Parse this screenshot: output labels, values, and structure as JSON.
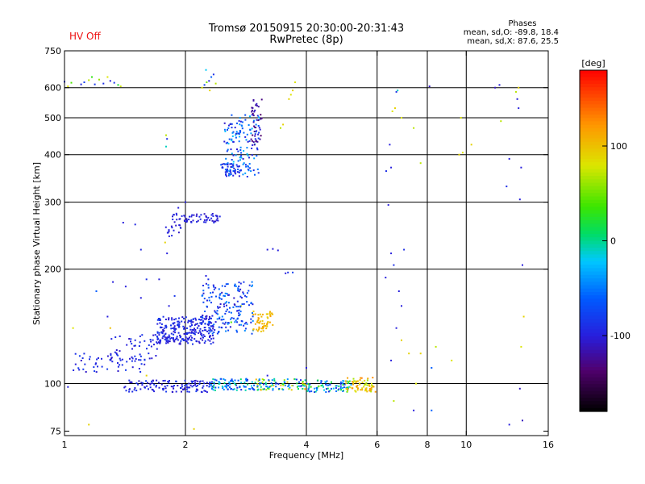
{
  "chart_data": {
    "type": "scatter",
    "title": "Tromsø 20150915 20:30:00-20:31:43",
    "subtitle": "RwPretec (8p)",
    "status": "HV Off",
    "stats": {
      "heading": "Phases",
      "line1": "mean, sd,O: -89.8, 18.4",
      "line2": "mean, sd,X:  87.6, 25.5"
    },
    "xlabel": "Frequency [MHz]",
    "ylabel": "Stationary phase Virtual Height [km]",
    "xscale": "log",
    "yscale": "log",
    "xlim": [
      1,
      16
    ],
    "ylim": [
      73,
      750
    ],
    "x_ticks": [
      "1",
      "2",
      "4",
      "6",
      "8",
      "10",
      "16"
    ],
    "x_tick_values": [
      1,
      2,
      4,
      6,
      8,
      10,
      16
    ],
    "y_ticks": [
      "75",
      "100",
      "200",
      "300",
      "400",
      "500",
      "600",
      "750"
    ],
    "y_tick_values": [
      75,
      100,
      200,
      300,
      400,
      500,
      600,
      750
    ],
    "grid_x": [
      2,
      4,
      6,
      8,
      10
    ],
    "grid_y": [
      100,
      200,
      300,
      400,
      500,
      600
    ],
    "colorbar": {
      "label": "[deg]",
      "range": [
        -180,
        180
      ],
      "ticks": [
        "100",
        "0",
        "-100"
      ],
      "tick_values": [
        100,
        0,
        -100
      ]
    },
    "series": [
      {
        "values": [
          [
            1.0,
            622,
            -90
          ],
          [
            1.02,
            605,
            80
          ],
          [
            1.04,
            618,
            40
          ],
          [
            1.1,
            612,
            -95
          ],
          [
            1.12,
            620,
            -80
          ],
          [
            1.15,
            628,
            70
          ],
          [
            1.17,
            640,
            30
          ],
          [
            1.19,
            612,
            -85
          ],
          [
            1.22,
            630,
            60
          ],
          [
            1.25,
            615,
            -90
          ],
          [
            1.28,
            640,
            80
          ],
          [
            1.3,
            625,
            -100
          ],
          [
            1.33,
            618,
            -85
          ],
          [
            1.36,
            610,
            20
          ],
          [
            1.38,
            605,
            75
          ],
          [
            2.2,
            600,
            80
          ],
          [
            2.23,
            610,
            -75
          ],
          [
            2.26,
            620,
            50
          ],
          [
            2.29,
            625,
            -100
          ],
          [
            2.32,
            640,
            -60
          ],
          [
            2.35,
            650,
            -90
          ],
          [
            2.38,
            615,
            70
          ],
          [
            2.3,
            590,
            90
          ],
          [
            2.25,
            668,
            -20
          ],
          [
            1.79,
            450,
            70
          ],
          [
            1.8,
            440,
            -90
          ],
          [
            1.79,
            420,
            -10
          ],
          [
            3.45,
            470,
            70
          ],
          [
            3.5,
            480,
            90
          ],
          [
            3.62,
            560,
            90
          ],
          [
            3.66,
            575,
            80
          ],
          [
            3.7,
            590,
            90
          ],
          [
            3.75,
            620,
            80
          ],
          [
            2.28,
            188,
            -90
          ],
          [
            1.42,
            180,
            -100
          ],
          [
            1.55,
            168,
            -100
          ],
          [
            1.6,
            188,
            -90
          ],
          [
            1.2,
            175,
            -60
          ],
          [
            1.32,
            185,
            -100
          ],
          [
            1.72,
            188,
            -100
          ],
          [
            1.88,
            170,
            -85
          ],
          [
            1.82,
            160,
            -100
          ],
          [
            2.2,
            150,
            -60
          ],
          [
            2.6,
            145,
            40
          ],
          [
            2.75,
            160,
            80
          ],
          [
            1.4,
            265,
            -100
          ],
          [
            1.5,
            262,
            -95
          ],
          [
            1.78,
            235,
            90
          ],
          [
            1.85,
            245,
            -95
          ],
          [
            1.92,
            290,
            -100
          ],
          [
            2.4,
            275,
            -90
          ],
          [
            1.55,
            225,
            -95
          ],
          [
            1.8,
            220,
            -100
          ],
          [
            3.2,
            225,
            -100
          ],
          [
            3.3,
            226,
            -100
          ],
          [
            3.4,
            224,
            -100
          ],
          [
            2.25,
            192,
            -100
          ],
          [
            3.55,
            195,
            -100
          ],
          [
            3.6,
            196,
            -90
          ],
          [
            3.7,
            196,
            -80
          ],
          [
            1.28,
            150,
            -100
          ],
          [
            1.3,
            140,
            100
          ],
          [
            1.5,
            130,
            -95
          ],
          [
            6.32,
            362,
            -90
          ],
          [
            6.45,
            425,
            -100
          ],
          [
            6.5,
            370,
            -100
          ],
          [
            6.55,
            520,
            80
          ],
          [
            6.65,
            530,
            90
          ],
          [
            6.7,
            585,
            -90
          ],
          [
            6.75,
            590,
            -10
          ],
          [
            6.9,
            500,
            80
          ],
          [
            7.4,
            470,
            70
          ],
          [
            7.7,
            380,
            70
          ],
          [
            8.1,
            605,
            -110
          ],
          [
            9.6,
            400,
            90
          ],
          [
            9.7,
            500,
            80
          ],
          [
            9.8,
            405,
            80
          ],
          [
            10.3,
            425,
            90
          ],
          [
            11.8,
            600,
            -110
          ],
          [
            12.1,
            610,
            -100
          ],
          [
            12.2,
            490,
            70
          ],
          [
            12.6,
            330,
            -90
          ],
          [
            12.8,
            390,
            -100
          ],
          [
            13.3,
            585,
            70
          ],
          [
            13.4,
            560,
            -100
          ],
          [
            13.5,
            530,
            -100
          ],
          [
            13.7,
            370,
            -100
          ],
          [
            13.6,
            305,
            -100
          ],
          [
            13.8,
            205,
            -100
          ],
          [
            13.9,
            150,
            90
          ],
          [
            13.7,
            125,
            80
          ],
          [
            13.5,
            600,
            90
          ],
          [
            6.4,
            295,
            -100
          ],
          [
            6.5,
            220,
            -100
          ],
          [
            6.6,
            205,
            -90
          ],
          [
            6.8,
            175,
            -100
          ],
          [
            6.9,
            160,
            -100
          ],
          [
            7.0,
            225,
            -90
          ],
          [
            6.3,
            190,
            -100
          ],
          [
            6.7,
            140,
            -100
          ],
          [
            6.9,
            130,
            90
          ],
          [
            7.2,
            120,
            90
          ],
          [
            7.5,
            100,
            80
          ],
          [
            7.7,
            120,
            90
          ],
          [
            8.2,
            110,
            -60
          ],
          [
            8.4,
            125,
            70
          ],
          [
            9.2,
            115,
            80
          ],
          [
            6.5,
            115,
            -100
          ],
          [
            6.6,
            90,
            70
          ],
          [
            7.4,
            85,
            -100
          ],
          [
            8.2,
            85,
            -60
          ],
          [
            13.6,
            97,
            -110
          ],
          [
            13.8,
            80,
            -110
          ],
          [
            12.8,
            78,
            -100
          ],
          [
            1.02,
            98,
            -100
          ],
          [
            1.05,
            140,
            80
          ],
          [
            1.15,
            78,
            90
          ],
          [
            2.1,
            76,
            90
          ],
          [
            2.0,
            300,
            -100
          ],
          [
            1.6,
            105,
            90
          ],
          [
            2.2,
            95,
            -100
          ],
          [
            3.2,
            105,
            -100
          ],
          [
            4.0,
            110,
            -100
          ]
        ]
      },
      {
        "clusters": [
          {
            "x": [
              1.7,
              2.35
            ],
            "y": [
              127,
              150
            ],
            "n": 260,
            "phase": [
              -110,
              -80
            ]
          },
          {
            "x": [
              2.2,
              2.95
            ],
            "y": [
              135,
              185
            ],
            "n": 180,
            "phase": [
              -110,
              -40
            ]
          },
          {
            "x": [
              1.05,
              1.6
            ],
            "y": [
              107,
              120
            ],
            "n": 55,
            "phase": [
              -110,
              -80
            ]
          },
          {
            "x": [
              1.3,
              1.7
            ],
            "y": [
              115,
              135
            ],
            "n": 45,
            "phase": [
              -110,
              -80
            ]
          },
          {
            "x": [
              2.95,
              3.3
            ],
            "y": [
              137,
              155
            ],
            "n": 55,
            "phase": [
              90,
              120
            ]
          },
          {
            "x": [
              2.5,
              3.05
            ],
            "y": [
              350,
              510
            ],
            "n": 140,
            "phase": [
              -110,
              -20
            ]
          },
          {
            "x": [
              2.45,
              2.75
            ],
            "y": [
              350,
              380
            ],
            "n": 40,
            "phase": [
              -110,
              -60
            ]
          },
          {
            "x": [
              2.9,
              3.1
            ],
            "y": [
              420,
              560
            ],
            "n": 40,
            "phase": [
              -140,
              -100
            ]
          },
          {
            "x": [
              1.85,
              2.45
            ],
            "y": [
              265,
              280
            ],
            "n": 60,
            "phase": [
              -110,
              -90
            ]
          },
          {
            "x": [
              1.78,
              1.95
            ],
            "y": [
              240,
              265
            ],
            "n": 15,
            "phase": [
              -110,
              -90
            ]
          },
          {
            "x": [
              1.4,
              2.3
            ],
            "y": [
              95,
              102
            ],
            "n": 120,
            "phase": [
              -110,
              -80
            ]
          },
          {
            "x": [
              2.3,
              3.0
            ],
            "y": [
              96,
              103
            ],
            "n": 90,
            "phase": [
              -100,
              10
            ]
          },
          {
            "x": [
              3.0,
              4.0
            ],
            "y": [
              96,
              103
            ],
            "n": 90,
            "phase": [
              -100,
              110
            ]
          },
          {
            "x": [
              4.0,
              5.2
            ],
            "y": [
              95,
              102
            ],
            "n": 80,
            "phase": [
              -100,
              40
            ]
          },
          {
            "x": [
              5.0,
              5.95
            ],
            "y": [
              95,
              104
            ],
            "n": 70,
            "phase": [
              60,
              130
            ]
          }
        ]
      }
    ]
  }
}
